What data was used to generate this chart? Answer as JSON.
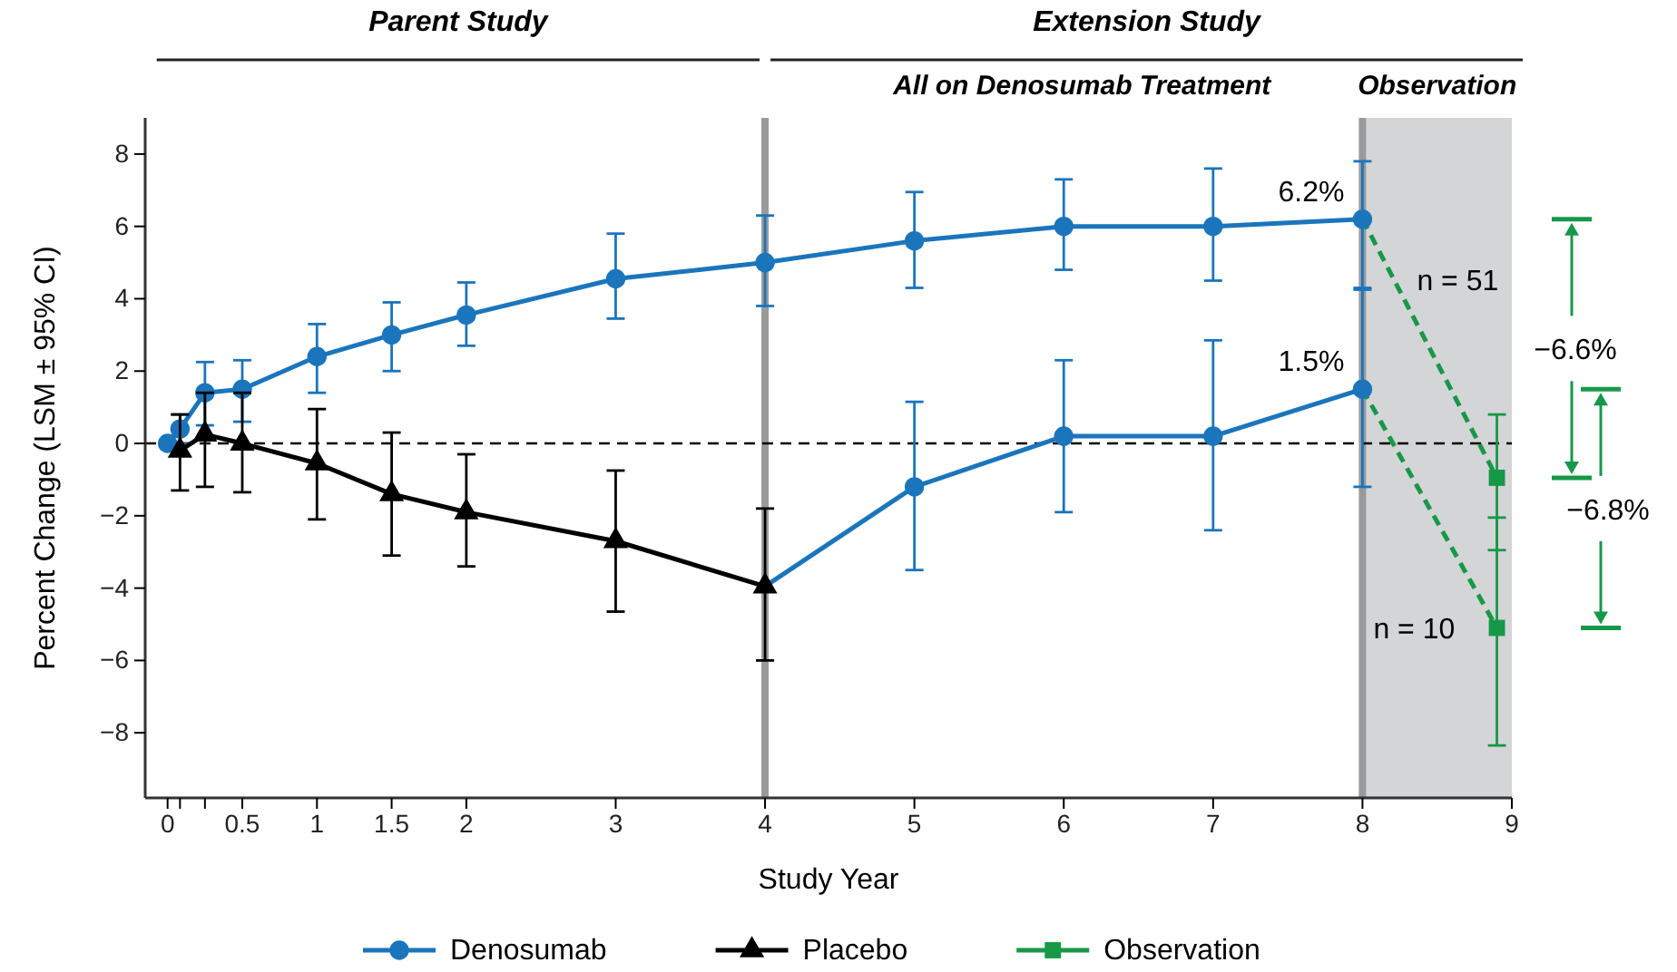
{
  "chart_data": {
    "type": "line",
    "xlabel": "Study Year",
    "ylabel": "Percent Change (LSM ± 95% CI)",
    "xlim": [
      -0.15,
      9
    ],
    "ylim": [
      -9.8,
      9
    ],
    "xticks": [
      0,
      {
        "value": 0.083,
        "label": null
      },
      {
        "value": 0.25,
        "label": null
      },
      0.5,
      1,
      1.5,
      2,
      3,
      4,
      5,
      6,
      7,
      8,
      9
    ],
    "yticks": [
      {
        "value": -8,
        "label": "−8"
      },
      {
        "value": -6,
        "label": "−6"
      },
      {
        "value": -4,
        "label": "−4"
      },
      {
        "value": -2,
        "label": "−2"
      },
      0,
      2,
      4,
      6,
      8
    ],
    "grid": false,
    "legend": "bottom",
    "bands": [
      {
        "axis": "x",
        "from": 8,
        "to": 9,
        "label": "Observation",
        "color": "#d4d5d7"
      }
    ],
    "ref_lines": [
      {
        "axis": "x",
        "value": 4,
        "color": "#9a9a9a"
      },
      {
        "axis": "x",
        "value": 8,
        "color": "#9a9a9a"
      },
      {
        "axis": "y",
        "value": 0,
        "color": "#000000",
        "line_style": "dashed"
      }
    ],
    "series": [
      {
        "type": "line",
        "color": "#179848",
        "line_style": "dashed",
        "marker": "none",
        "x": [
          8,
          8.9
        ],
        "values": [
          6.2,
          -0.95
        ]
      },
      {
        "type": "line",
        "color": "#179848",
        "line_style": "dashed",
        "marker": "none",
        "x": [
          8,
          8.9
        ],
        "values": [
          1.5,
          -5.1
        ]
      },
      {
        "type": "line",
        "color": "#1a75bc",
        "x": [
          4,
          5
        ],
        "values": [
          -3.95,
          -1.2
        ]
      },
      {
        "type": "line",
        "color": "#1a75bc",
        "marker": "circle",
        "x": [
          5,
          6,
          7,
          8
        ],
        "values": [
          -1.2,
          0.2,
          0.2,
          1.5
        ],
        "errors": [
          [
            -3.5,
            1.15
          ],
          [
            -1.9,
            2.3
          ],
          [
            -2.4,
            2.85
          ],
          [
            -1.2,
            4.3
          ]
        ]
      },
      {
        "name": "Denosumab",
        "type": "line",
        "color": "#1a75bc",
        "marker": "circle",
        "x": [
          0,
          0.083,
          0.25,
          0.5,
          1,
          1.5,
          2,
          3,
          4,
          5,
          6,
          7,
          8
        ],
        "values": [
          0,
          0.4,
          1.4,
          1.5,
          2.4,
          3.0,
          3.55,
          4.55,
          5.0,
          5.6,
          6.0,
          6.0,
          6.2
        ],
        "errors": [
          null,
          [
            0,
            0.8
          ],
          [
            0.5,
            2.25
          ],
          [
            0.6,
            2.3
          ],
          [
            1.4,
            3.3
          ],
          [
            2.0,
            3.9
          ],
          [
            2.7,
            4.45
          ],
          [
            3.45,
            5.8
          ],
          [
            3.8,
            6.3
          ],
          [
            4.3,
            6.95
          ],
          [
            4.8,
            7.3
          ],
          [
            4.5,
            7.6
          ],
          [
            4.25,
            7.8
          ]
        ]
      },
      {
        "name": "Placebo",
        "type": "line",
        "color": "#000000",
        "marker": "triangle",
        "x": [
          0.083,
          0.25,
          0.5,
          1,
          1.5,
          2,
          3,
          4
        ],
        "values": [
          -0.2,
          0.25,
          0.0,
          -0.55,
          -1.4,
          -1.9,
          -2.7,
          -3.95
        ],
        "errors": [
          [
            -1.3,
            0.8
          ],
          [
            -1.2,
            1.4
          ],
          [
            -1.35,
            1.4
          ],
          [
            -2.1,
            0.95
          ],
          [
            -3.1,
            0.3
          ],
          [
            -3.4,
            -0.3
          ],
          [
            -4.65,
            -0.75
          ],
          [
            -6.0,
            -1.8
          ]
        ]
      },
      {
        "name": "Observation",
        "type": "scatter",
        "color": "#179848",
        "marker": "square",
        "x": [
          8.9,
          8.9
        ],
        "values": [
          -0.95,
          -5.1
        ],
        "errors": [
          [
            -2.95,
            0.8
          ],
          [
            -8.35,
            -2.05
          ]
        ]
      }
    ],
    "annotations": [
      "Parent Study",
      "Extension Study",
      "All on Denosumab Treatment",
      {
        "text": "6.2%",
        "x": 8,
        "y": 6.2
      },
      {
        "text": "1.5%",
        "x": 8,
        "y": 1.5
      },
      "n = 51",
      "n = 10",
      "−6.6%",
      "−6.8%"
    ]
  }
}
